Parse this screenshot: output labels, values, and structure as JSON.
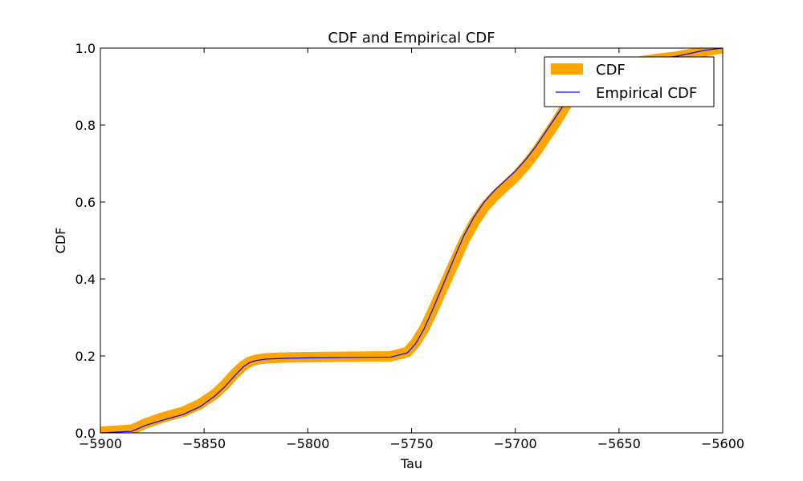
{
  "chart_data": {
    "type": "line",
    "title": "CDF and Empirical CDF",
    "xlabel": "Tau",
    "ylabel": "CDF",
    "xlim": [
      -5900,
      -5600
    ],
    "ylim": [
      0.0,
      1.0
    ],
    "xticks": [
      -5900,
      -5850,
      -5800,
      -5750,
      -5700,
      -5650,
      -5600
    ],
    "xtick_labels": [
      "−5900",
      "−5850",
      "−5800",
      "−5750",
      "−5700",
      "−5650",
      "−5600"
    ],
    "yticks": [
      0.0,
      0.2,
      0.4,
      0.6,
      0.8,
      1.0
    ],
    "ytick_labels": [
      "0.0",
      "0.2",
      "0.4",
      "0.6",
      "0.8",
      "1.0"
    ],
    "grid": false,
    "legend_position": "top-right",
    "series": [
      {
        "name": "CDF",
        "color": "#ffa500",
        "x": [
          -5900,
          -5885,
          -5878,
          -5870,
          -5860,
          -5852,
          -5845,
          -5840,
          -5835,
          -5831,
          -5828,
          -5825,
          -5820,
          -5810,
          -5800,
          -5780,
          -5760,
          -5752,
          -5748,
          -5744,
          -5740,
          -5735,
          -5730,
          -5725,
          -5720,
          -5715,
          -5710,
          -5705,
          -5700,
          -5695,
          -5690,
          -5685,
          -5680,
          -5675,
          -5672,
          -5668,
          -5660,
          -5650,
          -5640,
          -5630,
          -5622,
          -5615,
          -5610,
          -5605,
          -5600
        ],
        "y": [
          0.003,
          0.008,
          0.025,
          0.04,
          0.055,
          0.075,
          0.1,
          0.125,
          0.155,
          0.175,
          0.185,
          0.19,
          0.194,
          0.196,
          0.197,
          0.198,
          0.199,
          0.21,
          0.235,
          0.27,
          0.315,
          0.375,
          0.435,
          0.495,
          0.545,
          0.585,
          0.615,
          0.64,
          0.665,
          0.695,
          0.73,
          0.77,
          0.81,
          0.855,
          0.88,
          0.9,
          0.93,
          0.95,
          0.965,
          0.973,
          0.978,
          0.985,
          0.99,
          0.995,
          1.0
        ]
      },
      {
        "name": "Empirical CDF",
        "color": "#0000ff",
        "x": [
          -5900,
          -5885,
          -5878,
          -5870,
          -5860,
          -5852,
          -5845,
          -5840,
          -5835,
          -5831,
          -5828,
          -5825,
          -5820,
          -5810,
          -5800,
          -5780,
          -5760,
          -5752,
          -5748,
          -5744,
          -5740,
          -5735,
          -5730,
          -5725,
          -5720,
          -5715,
          -5710,
          -5705,
          -5700,
          -5695,
          -5690,
          -5685,
          -5680,
          -5675,
          -5672,
          -5668,
          -5660,
          -5650,
          -5640,
          -5630,
          -5622,
          -5615,
          -5610,
          -5605,
          -5600
        ],
        "y": [
          0.0,
          0.004,
          0.02,
          0.033,
          0.048,
          0.068,
          0.095,
          0.12,
          0.15,
          0.172,
          0.183,
          0.188,
          0.192,
          0.194,
          0.195,
          0.196,
          0.197,
          0.208,
          0.232,
          0.27,
          0.318,
          0.382,
          0.447,
          0.51,
          0.56,
          0.6,
          0.63,
          0.655,
          0.68,
          0.71,
          0.745,
          0.785,
          0.825,
          0.865,
          0.888,
          0.905,
          0.932,
          0.951,
          0.965,
          0.973,
          0.979,
          0.987,
          0.993,
          0.997,
          1.0
        ]
      }
    ]
  }
}
